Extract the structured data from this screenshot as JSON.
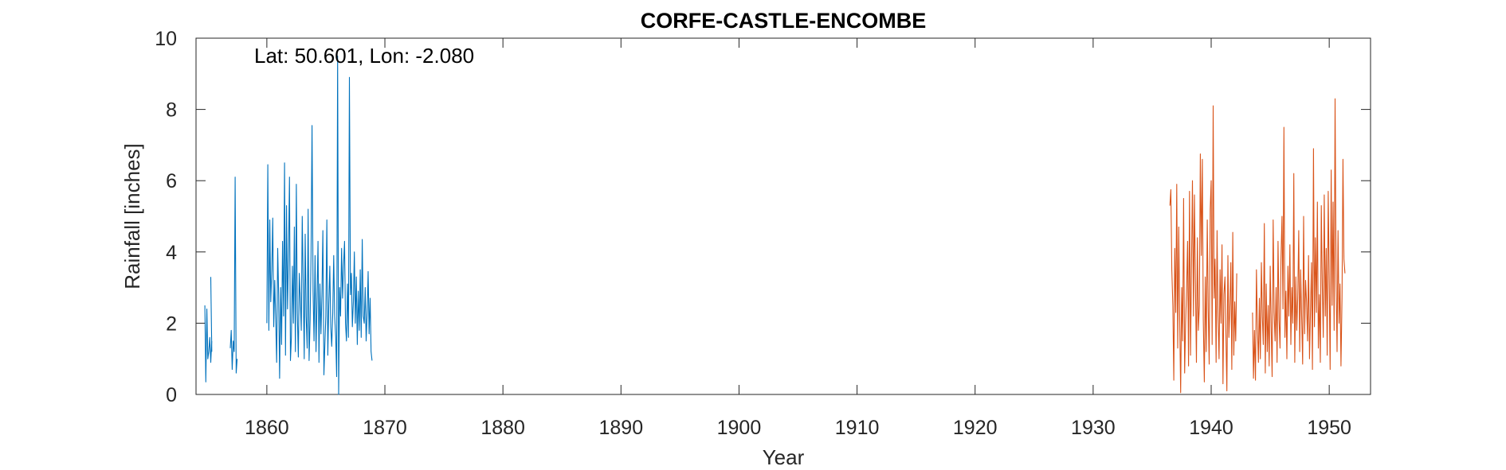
{
  "chart_data": {
    "type": "line",
    "title": "CORFE-CASTLE-ENCOMBE",
    "xlabel": "Year",
    "ylabel": "Rainfall [inches]",
    "annotation": "Lat: 50.601, Lon: -2.080",
    "xlim": [
      1854.0,
      1953.5
    ],
    "ylim": [
      0,
      10
    ],
    "xticks": [
      1860,
      1870,
      1880,
      1890,
      1900,
      1910,
      1920,
      1930,
      1940,
      1950
    ],
    "yticks": [
      0,
      2,
      4,
      6,
      8,
      10
    ],
    "grid": false,
    "colors": {
      "series1": "#0072BD",
      "series2": "#D95319"
    },
    "series": [
      {
        "segments": [
          {
            "x_start": 1854.75,
            "step": 0.0833,
            "values": [
              2.5,
              0.35,
              2.4,
              1.0,
              1.2,
              1.6,
              0.9,
              1.5
            ]
          },
          {
            "x_start": 1855.25,
            "step": 0.0833,
            "values": [
              3.3,
              1.2
            ]
          },
          {
            "x_start": 1856.9,
            "step": 0.0833,
            "values": [
              1.3,
              1.8,
              0.7,
              1.5,
              1.2,
              6.1,
              0.6,
              1.0
            ]
          },
          {
            "x_start": 1860.0,
            "step": 0.0833,
            "values": [
              2.0,
              6.45,
              1.8,
              4.9,
              2.6,
              3.5,
              4.95,
              1.9,
              3.2,
              2.1,
              0.9,
              4.1,
              2.8,
              0.45,
              3.0,
              1.4,
              4.3,
              2.2,
              6.5,
              1.1,
              5.3,
              2.4,
              3.8,
              6.1,
              0.95,
              1.6,
              3.6,
              2.0,
              4.7,
              1.2,
              5.9,
              2.3,
              1.05,
              3.4,
              2.7,
              1.8,
              5.0,
              3.2,
              1.0,
              4.5,
              2.2,
              1.3,
              5.2,
              0.95,
              2.1,
              4.0,
              7.55,
              2.9,
              1.5,
              3.9,
              1.2,
              2.6,
              4.3,
              0.9,
              3.1,
              1.7,
              2.8,
              4.6,
              0.55,
              1.4,
              2.2,
              4.9,
              1.1,
              2.5,
              3.6,
              1.9,
              1.35,
              2.3,
              3.9,
              2.2,
              1.6,
              0.5,
              9.5,
              0.0,
              3.0,
              2.2,
              4.1,
              2.7,
              3.6,
              4.3,
              2.0,
              1.5,
              3.1,
              1.6,
              8.9,
              2.8,
              3.4,
              1.9,
              2.6,
              4.0,
              2.0,
              3.3,
              1.4,
              2.9,
              1.8,
              3.5,
              1.6,
              4.35,
              2.2,
              2.0,
              3.0,
              1.5,
              2.3,
              3.45,
              1.7,
              2.7,
              1.2,
              0.95
            ]
          }
        ]
      },
      {
        "segments": [
          {
            "x_start": 1936.5,
            "step": 0.0833,
            "values": [
              5.3,
              5.75,
              3.5,
              2.5,
              0.4,
              4.1,
              2.3,
              5.9,
              1.3,
              4.7,
              2.1,
              0.05,
              3.0,
              1.5,
              5.5,
              0.6,
              2.0,
              2.9,
              4.3,
              0.8,
              5.7,
              1.1,
              3.6,
              6.0,
              2.2,
              5.6,
              3.2,
              0.9,
              4.4,
              1.8,
              2.5,
              6.75,
              3.9,
              6.6,
              2.1,
              0.35,
              3.3,
              1.2,
              4.9,
              2.4,
              0.85,
              5.2,
              6.0,
              1.4,
              8.1,
              2.7,
              3.8,
              0.9,
              4.6,
              2.2,
              1.0,
              3.5,
              2.0,
              4.2,
              0.3,
              2.8,
              3.3,
              1.7,
              0.1,
              3.9,
              1.6,
              2.4,
              3.7,
              0.7,
              4.55,
              1.1,
              2.6,
              1.5,
              3.4
            ]
          },
          {
            "x_start": 1943.5,
            "step": 0.0833,
            "values": [
              2.3,
              0.45,
              1.8,
              0.4,
              3.5,
              1.9,
              0.9,
              2.7,
              1.0,
              3.7,
              2.2,
              1.4,
              4.8,
              0.6,
              3.1,
              1.2,
              2.5,
              0.8,
              3.6,
              1.9,
              0.5,
              4.9,
              2.3,
              1.5,
              3.0,
              0.9,
              4.3,
              2.1,
              1.3,
              3.8,
              5.0,
              2.4,
              7.5,
              1.6,
              2.9,
              1.0,
              3.6,
              2.2,
              4.2,
              1.4,
              3.0,
              2.0,
              6.2,
              0.9,
              3.3,
              1.8,
              2.7,
              4.6,
              1.2,
              3.5,
              2.1,
              0.85,
              5.0,
              1.7,
              3.2,
              2.6,
              1.5,
              3.9,
              1.0,
              2.4,
              3.7,
              0.7,
              6.9,
              1.9,
              4.4,
              2.3,
              5.4,
              1.3,
              2.8,
              0.9,
              5.3,
              3.0,
              1.6,
              5.6,
              2.2,
              4.1,
              1.1,
              5.7,
              3.2,
              0.7,
              6.3,
              2.5,
              5.4,
              1.8,
              8.3,
              3.1,
              1.2,
              4.6,
              2.0,
              3.1,
              0.8,
              2.7,
              6.6,
              3.8,
              3.4
            ]
          }
        ]
      }
    ]
  }
}
